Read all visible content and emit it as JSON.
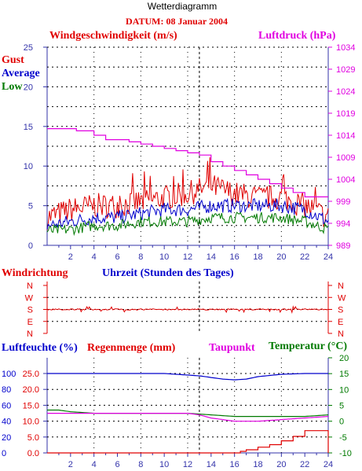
{
  "title": "Wetterdiagramm",
  "datum": "DATUM: 08 Januar 2004",
  "colors": {
    "red": "#e00000",
    "blue": "#0000cc",
    "green": "#007a00",
    "magenta": "#e000e0",
    "axis": "#3333aa",
    "grid": "#000000"
  },
  "wind_panel": {
    "title_left": "Windgeschwindigkeit (m/s)",
    "title_right": "Luftdruck (hPa)",
    "legend": {
      "gust": "Gust",
      "average": "Average",
      "low": "Low"
    },
    "left_ticks": [
      "0",
      "5",
      "10",
      "15",
      "20",
      "25"
    ],
    "right_ticks": [
      "989",
      "994",
      "999",
      "1004",
      "1009",
      "1014",
      "1019",
      "1024",
      "1029",
      "1034"
    ],
    "x_ticks": [
      "2",
      "4",
      "6",
      "8",
      "10",
      "12",
      "14",
      "16",
      "18",
      "20",
      "22",
      "24"
    ]
  },
  "dir_panel": {
    "title_left": "Windrichtung",
    "title_center": "Uhrzeit (Stunden des Tages)",
    "dir_labels": [
      "N",
      "W",
      "S",
      "E",
      "N"
    ]
  },
  "humid_panel": {
    "title_humidity": "Luftfeuchte (%)",
    "title_rain": "Regenmenge (mm)",
    "title_dewpoint": "Taupunkt",
    "title_temperature": "Temperatur (°C)",
    "humidity_ticks": [
      "0",
      "20",
      "40",
      "60",
      "80",
      "100"
    ],
    "rain_ticks": [
      "0.0",
      "5.0",
      "10.0",
      "15.0",
      "20.0",
      "25.0"
    ],
    "temp_ticks": [
      "-10",
      "-5",
      "0",
      "5",
      "10",
      "15",
      "20"
    ],
    "x_ticks": [
      "2",
      "4",
      "6",
      "8",
      "10",
      "12",
      "14",
      "16",
      "18",
      "20",
      "22",
      "24"
    ]
  },
  "chart_data": [
    {
      "type": "line",
      "title": "Windgeschwindigkeit (m/s)",
      "x_unit": "hour",
      "xlim": [
        0,
        24
      ],
      "ylim": [
        0,
        25
      ],
      "ylim_right": [
        989,
        1034
      ],
      "series": [
        {
          "name": "Gust",
          "axis": "left",
          "x": [
            0,
            2,
            4,
            6,
            8,
            10,
            12,
            13,
            14,
            15,
            16,
            18,
            20,
            22,
            24
          ],
          "values": [
            3.5,
            4.5,
            5,
            5,
            5.5,
            6,
            6.5,
            7,
            7.5,
            7,
            6.5,
            6,
            6,
            5,
            3.5
          ]
        },
        {
          "name": "Average",
          "axis": "left",
          "x": [
            0,
            2,
            4,
            6,
            8,
            10,
            12,
            14,
            16,
            18,
            20,
            22,
            24
          ],
          "values": [
            2.5,
            3,
            3.5,
            3.5,
            4,
            4.5,
            4.5,
            5,
            5,
            5,
            5,
            4.5,
            3
          ]
        },
        {
          "name": "Low",
          "axis": "left",
          "x": [
            0,
            2,
            4,
            6,
            8,
            10,
            12,
            14,
            16,
            18,
            20,
            22,
            24
          ],
          "values": [
            1.8,
            2,
            2.5,
            2.5,
            3,
            3,
            3,
            3.5,
            3.5,
            3.5,
            3.5,
            3,
            2
          ]
        },
        {
          "name": "Luftdruck",
          "axis": "right",
          "x": [
            0,
            2,
            2.5,
            4,
            5,
            6,
            7,
            8,
            9,
            10,
            11,
            12,
            13,
            14,
            15,
            16,
            17,
            18,
            19,
            20,
            21,
            22,
            24
          ],
          "values": [
            1015.5,
            1015.5,
            1015,
            1014,
            1013,
            1013,
            1012.5,
            1012,
            1011.5,
            1011,
            1010.5,
            1010,
            1009.5,
            1008,
            1007,
            1006,
            1005,
            1004,
            1003,
            1002,
            1001,
            1000,
            1000
          ]
        }
      ]
    },
    {
      "type": "line",
      "title": "Windrichtung",
      "x_unit": "hour",
      "xlim": [
        0,
        24
      ],
      "y_categories": [
        "N",
        "W",
        "S",
        "E",
        "N"
      ],
      "series": [
        {
          "name": "Windrichtung",
          "x": [
            0,
            24
          ],
          "values": [
            "S",
            "S"
          ]
        }
      ]
    },
    {
      "type": "line",
      "title": "Luftfeuchte / Regenmenge / Taupunkt / Temperatur",
      "x_unit": "hour",
      "xlim": [
        0,
        24
      ],
      "ylim_humidity": [
        0,
        100
      ],
      "ylim_rain": [
        0,
        25
      ],
      "ylim_temp": [
        -10,
        20
      ],
      "series": [
        {
          "name": "Luftfeuchte (%)",
          "axis": "humidity",
          "x": [
            0,
            4,
            8,
            10,
            11,
            12,
            13,
            14,
            15,
            16,
            17,
            18,
            20,
            22,
            24
          ],
          "values": [
            100,
            100,
            100,
            100,
            99,
            98,
            97,
            95,
            93,
            92,
            93,
            96,
            99,
            100,
            100
          ]
        },
        {
          "name": "Regenmenge (mm)",
          "axis": "rain",
          "x": [
            0,
            16,
            16.5,
            17,
            18,
            19,
            20,
            21,
            22,
            23.7,
            24
          ],
          "values": [
            0,
            0,
            0.5,
            1,
            1.8,
            2.6,
            3.8,
            5.2,
            7,
            7,
            0
          ]
        },
        {
          "name": "Temperatur (°C)",
          "axis": "temp",
          "x": [
            0,
            1,
            2,
            4,
            6,
            8,
            10,
            12,
            14,
            16,
            18,
            20,
            22,
            24
          ],
          "values": [
            3.5,
            3.5,
            3,
            2.5,
            2.5,
            2.5,
            2.5,
            2.5,
            2,
            1.5,
            1.5,
            1.5,
            1.5,
            2
          ]
        },
        {
          "name": "Taupunkt",
          "axis": "temp",
          "x": [
            0,
            8,
            10,
            11,
            12,
            13,
            14,
            15,
            16,
            18,
            20,
            22,
            24
          ],
          "values": [
            2.5,
            2.5,
            2.5,
            2.5,
            2.5,
            2,
            1,
            0.5,
            0,
            0,
            0.5,
            1,
            1.5
          ]
        }
      ]
    }
  ]
}
